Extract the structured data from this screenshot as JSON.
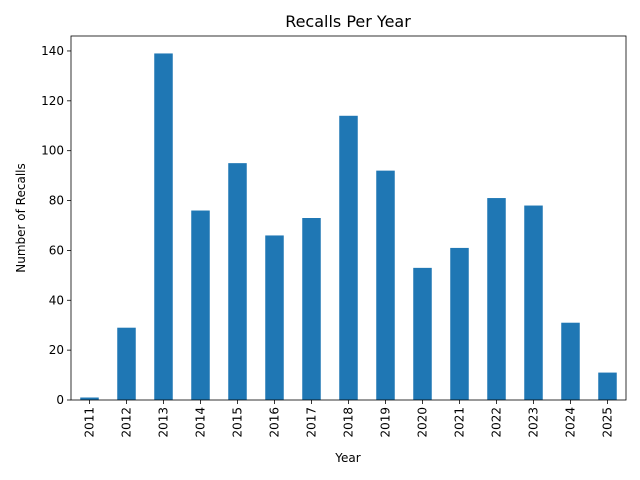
{
  "chart_data": {
    "type": "bar",
    "title": "Recalls Per Year",
    "xlabel": "Year",
    "ylabel": "Number of Recalls",
    "categories": [
      "2011",
      "2012",
      "2013",
      "2014",
      "2015",
      "2016",
      "2017",
      "2018",
      "2019",
      "2020",
      "2021",
      "2022",
      "2023",
      "2024",
      "2025"
    ],
    "values": [
      1,
      29,
      139,
      76,
      95,
      66,
      73,
      114,
      92,
      53,
      61,
      81,
      78,
      31,
      11
    ],
    "ylim": [
      0,
      146
    ],
    "yticks": [
      0,
      20,
      40,
      60,
      80,
      100,
      120,
      140
    ],
    "grid": false,
    "bar_color": "#1f77b4"
  }
}
